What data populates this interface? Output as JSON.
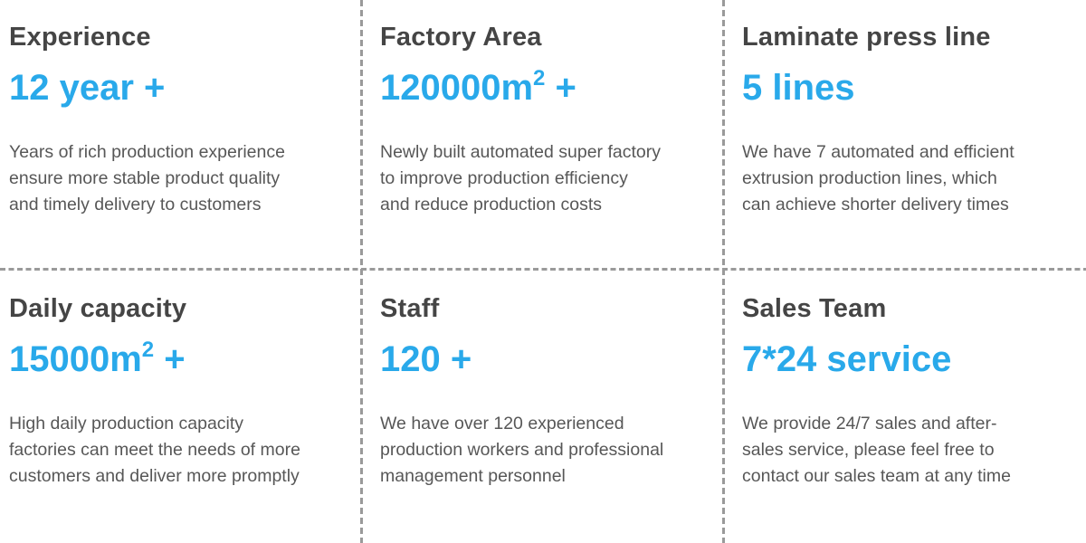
{
  "accent_color": "#29a9ea",
  "title_color": "#454545",
  "text_color": "#575757",
  "divider_color": "#9a9a9a",
  "cards": [
    {
      "title": "Experience",
      "stat_pre": "12 year +",
      "stat_sup": "",
      "stat_post": "",
      "desc_lines": [
        "Years of rich production experience",
        "ensure more stable product quality",
        "and timely delivery to customers"
      ]
    },
    {
      "title": "Factory Area",
      "stat_pre": "120000m",
      "stat_sup": "2",
      "stat_post": " +",
      "desc_lines": [
        "Newly built automated super factory",
        "to improve production efficiency",
        "and reduce production costs"
      ]
    },
    {
      "title": "Laminate press line",
      "stat_pre": "5 lines",
      "stat_sup": "",
      "stat_post": "",
      "desc_lines": [
        "We have 7 automated and efficient",
        "extrusion production lines, which",
        "can achieve shorter delivery times"
      ]
    },
    {
      "title": "Daily capacity",
      "stat_pre": "15000m",
      "stat_sup": "2",
      "stat_post": " +",
      "desc_lines": [
        "High daily production capacity",
        "factories can meet the needs of more",
        "customers and deliver more promptly"
      ]
    },
    {
      "title": "Staff",
      "stat_pre": "120 +",
      "stat_sup": "",
      "stat_post": "",
      "desc_lines": [
        "We have over 120 experienced",
        "production workers and professional",
        "management personnel"
      ]
    },
    {
      "title": "Sales Team",
      "stat_pre": "7*24 service",
      "stat_sup": "",
      "stat_post": "",
      "desc_lines": [
        "We provide 24/7 sales and after-",
        "sales service, please feel free to",
        "contact our sales team at any time"
      ]
    }
  ]
}
